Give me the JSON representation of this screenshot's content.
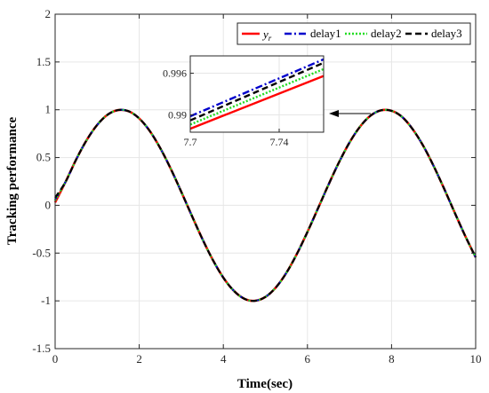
{
  "chart_data": {
    "type": "line",
    "xlabel": "Time(sec)",
    "ylabel": "Tracking performance",
    "xlim": [
      0,
      10
    ],
    "ylim": [
      -1.5,
      2
    ],
    "xticks": [
      0,
      2,
      4,
      6,
      8,
      10
    ],
    "yticks": [
      -1.5,
      -1,
      -0.5,
      0,
      0.5,
      1,
      1.5,
      2
    ],
    "grid": true,
    "legend_position": "top-right",
    "x": [
      0,
      0.25,
      0.5,
      0.75,
      1,
      1.25,
      1.5,
      1.75,
      2,
      2.25,
      2.5,
      2.75,
      3,
      3.25,
      3.5,
      3.75,
      4,
      4.25,
      4.5,
      4.75,
      5,
      5.25,
      5.5,
      5.75,
      6,
      6.25,
      6.5,
      6.75,
      7,
      7.25,
      7.5,
      7.75,
      8,
      8.25,
      8.5,
      8.75,
      9,
      9.25,
      9.5,
      9.75,
      10
    ],
    "series": [
      {
        "name": "y_r",
        "legend_label": "y",
        "legend_subscript": "r",
        "color": "#ff0000",
        "dash": "solid",
        "start": 0.03,
        "values": [
          0,
          0.247,
          0.479,
          0.682,
          0.841,
          0.949,
          0.997,
          0.984,
          0.909,
          0.778,
          0.598,
          0.382,
          0.141,
          -0.108,
          -0.351,
          -0.572,
          -0.757,
          -0.895,
          -0.978,
          -0.999,
          -0.959,
          -0.859,
          -0.706,
          -0.508,
          -0.279,
          -0.033,
          0.215,
          0.45,
          0.657,
          0.823,
          0.938,
          0.994,
          0.989,
          0.925,
          0.798,
          0.625,
          0.412,
          0.174,
          -0.075,
          -0.319,
          -0.544
        ]
      },
      {
        "name": "delay1",
        "color": "#0000cc",
        "dash": "dashdot",
        "start": 0.06,
        "values": [
          0,
          0.247,
          0.479,
          0.682,
          0.841,
          0.949,
          0.997,
          0.984,
          0.909,
          0.778,
          0.598,
          0.382,
          0.141,
          -0.108,
          -0.351,
          -0.572,
          -0.757,
          -0.895,
          -0.978,
          -0.999,
          -0.959,
          -0.859,
          -0.706,
          -0.508,
          -0.279,
          -0.033,
          0.215,
          0.45,
          0.657,
          0.823,
          0.938,
          0.994,
          0.989,
          0.925,
          0.798,
          0.625,
          0.412,
          0.174,
          -0.075,
          -0.319,
          -0.544
        ]
      },
      {
        "name": "delay2",
        "color": "#22dd22",
        "dash": "dotted",
        "start": 0.05,
        "values": [
          0,
          0.247,
          0.479,
          0.682,
          0.841,
          0.949,
          0.997,
          0.984,
          0.909,
          0.778,
          0.598,
          0.382,
          0.141,
          -0.108,
          -0.351,
          -0.572,
          -0.757,
          -0.895,
          -0.978,
          -0.999,
          -0.959,
          -0.859,
          -0.706,
          -0.508,
          -0.279,
          -0.033,
          0.215,
          0.45,
          0.657,
          0.823,
          0.938,
          0.994,
          0.989,
          0.925,
          0.798,
          0.625,
          0.412,
          0.174,
          -0.075,
          -0.319,
          -0.544
        ]
      },
      {
        "name": "delay3",
        "color": "#000000",
        "dash": "dashed",
        "start": 0.08,
        "values": [
          0,
          0.247,
          0.479,
          0.682,
          0.841,
          0.949,
          0.997,
          0.984,
          0.909,
          0.778,
          0.598,
          0.382,
          0.141,
          -0.108,
          -0.351,
          -0.572,
          -0.757,
          -0.895,
          -0.978,
          -0.999,
          -0.959,
          -0.859,
          -0.706,
          -0.508,
          -0.279,
          -0.033,
          0.215,
          0.45,
          0.657,
          0.823,
          0.938,
          0.994,
          0.989,
          0.925,
          0.798,
          0.625,
          0.412,
          0.174,
          -0.075,
          -0.319,
          -0.544
        ]
      }
    ],
    "inset": {
      "xlim": [
        7.7,
        7.76
      ],
      "ylim": [
        0.9875,
        0.9985
      ],
      "xticks": [
        7.7,
        7.74
      ],
      "xtick_labels": [
        "7.7",
        "7.74"
      ],
      "yticks": [
        0.99,
        0.996
      ],
      "ytick_labels": [
        "0.99",
        "0.996"
      ],
      "series": [
        {
          "name": "y_r",
          "x": [
            7.7,
            7.76
          ],
          "values": [
            0.988,
            0.9956
          ]
        },
        {
          "name": "delay1",
          "x": [
            7.7,
            7.76
          ],
          "values": [
            0.9898,
            0.998
          ]
        },
        {
          "name": "delay2",
          "x": [
            7.7,
            7.76
          ],
          "values": [
            0.9886,
            0.9966
          ]
        },
        {
          "name": "delay3",
          "x": [
            7.7,
            7.76
          ],
          "values": [
            0.9892,
            0.9975
          ]
        }
      ]
    },
    "annotation": {
      "type": "arrow",
      "from": [
        8.4,
        0.95
      ],
      "to": [
        7.76,
        0.95
      ]
    }
  }
}
